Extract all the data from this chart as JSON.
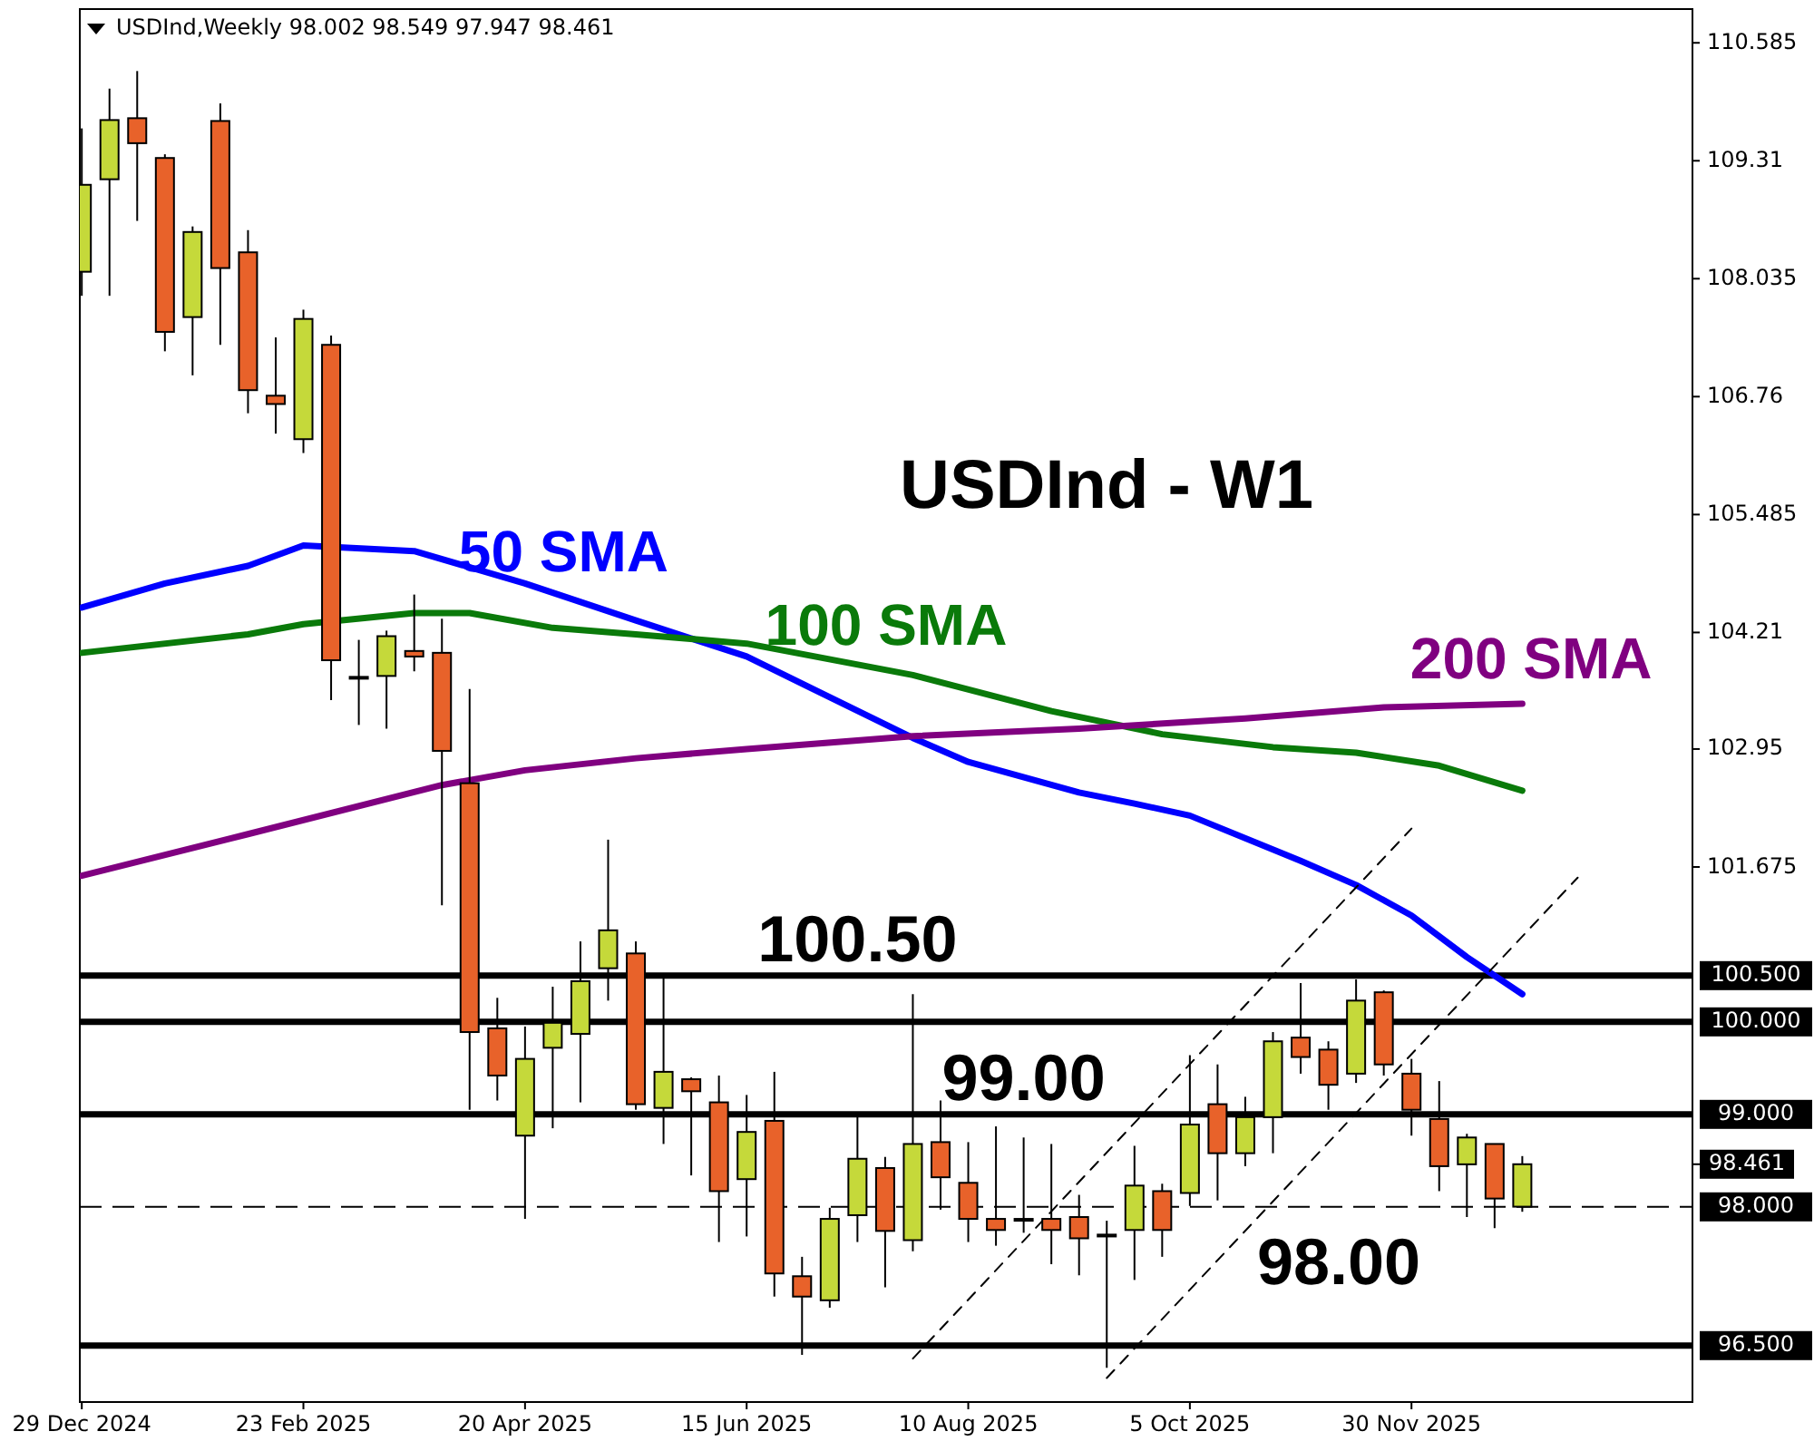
{
  "chart_data": {
    "type": "candlestick",
    "title": "USDInd - W1",
    "subtitle": "USDInd,Weekly 98.002 98.549 97.947 98.461",
    "x": [
      "2024-12-29",
      "2025-01-05",
      "2025-01-12",
      "2025-01-19",
      "2025-01-26",
      "2025-02-02",
      "2025-02-09",
      "2025-02-16",
      "2025-02-23",
      "2025-03-02",
      "2025-03-09",
      "2025-03-16",
      "2025-03-23",
      "2025-03-30",
      "2025-04-06",
      "2025-04-13",
      "2025-04-20",
      "2025-04-27",
      "2025-05-04",
      "2025-05-11",
      "2025-05-18",
      "2025-05-25",
      "2025-06-01",
      "2025-06-08",
      "2025-06-15",
      "2025-06-22",
      "2025-06-29",
      "2025-07-06",
      "2025-07-13",
      "2025-07-20",
      "2025-07-27",
      "2025-08-03",
      "2025-08-10",
      "2025-08-17",
      "2025-08-24",
      "2025-08-31",
      "2025-09-07",
      "2025-09-14",
      "2025-09-21",
      "2025-09-28",
      "2025-10-05",
      "2025-10-12",
      "2025-10-19",
      "2025-10-26",
      "2025-11-02",
      "2025-11-09",
      "2025-11-16",
      "2025-11-23",
      "2025-11-30",
      "2025-12-07",
      "2025-12-14",
      "2025-12-21",
      "2025-12-28"
    ],
    "ohlc": [
      [
        108.11,
        109.66,
        107.85,
        109.05
      ],
      [
        109.11,
        110.09,
        107.85,
        109.75
      ],
      [
        109.77,
        110.28,
        108.66,
        109.5
      ],
      [
        109.34,
        109.38,
        107.25,
        107.46
      ],
      [
        107.62,
        108.6,
        106.99,
        108.54
      ],
      [
        109.74,
        109.93,
        107.32,
        108.15
      ],
      [
        108.32,
        108.56,
        106.58,
        106.83
      ],
      [
        106.77,
        107.4,
        106.36,
        106.68
      ],
      [
        106.3,
        107.7,
        106.15,
        107.6
      ],
      [
        107.32,
        107.42,
        103.48,
        103.91
      ],
      [
        103.73,
        104.13,
        103.21,
        103.72
      ],
      [
        103.74,
        104.23,
        103.17,
        104.17
      ],
      [
        104.01,
        104.62,
        103.79,
        103.95
      ],
      [
        103.99,
        104.36,
        101.26,
        102.93
      ],
      [
        102.58,
        103.6,
        99.05,
        99.89
      ],
      [
        99.93,
        100.26,
        99.15,
        99.42
      ],
      [
        98.77,
        99.95,
        97.87,
        99.6
      ],
      [
        99.72,
        100.38,
        98.85,
        99.99
      ],
      [
        99.87,
        100.87,
        99.13,
        100.44
      ],
      [
        100.58,
        101.97,
        100.23,
        100.99
      ],
      [
        100.74,
        100.87,
        99.05,
        99.11
      ],
      [
        99.07,
        100.48,
        98.68,
        99.46
      ],
      [
        99.38,
        99.4,
        98.34,
        99.25
      ],
      [
        99.13,
        99.42,
        97.62,
        98.17
      ],
      [
        98.3,
        99.21,
        97.68,
        98.81
      ],
      [
        98.93,
        99.46,
        97.03,
        97.28
      ],
      [
        97.25,
        97.46,
        96.4,
        97.03
      ],
      [
        96.99,
        97.99,
        96.91,
        97.87
      ],
      [
        97.91,
        98.97,
        97.62,
        98.52
      ],
      [
        98.42,
        98.54,
        97.13,
        97.74
      ],
      [
        97.64,
        100.3,
        97.52,
        98.68
      ],
      [
        98.7,
        99.15,
        97.97,
        98.32
      ],
      [
        98.26,
        98.7,
        97.62,
        97.87
      ],
      [
        97.87,
        98.87,
        97.58,
        97.75
      ],
      [
        97.85,
        98.75,
        97.72,
        97.87
      ],
      [
        97.87,
        98.68,
        97.38,
        97.75
      ],
      [
        97.89,
        98.13,
        97.26,
        97.66
      ],
      [
        97.68,
        97.85,
        96.26,
        97.7
      ],
      [
        97.75,
        98.66,
        97.21,
        98.23
      ],
      [
        98.17,
        98.25,
        97.46,
        97.75
      ],
      [
        98.15,
        99.64,
        98.01,
        98.89
      ],
      [
        99.11,
        99.54,
        98.07,
        98.58
      ],
      [
        98.58,
        99.19,
        98.44,
        98.97
      ],
      [
        98.97,
        99.89,
        98.58,
        99.79
      ],
      [
        99.83,
        100.42,
        99.44,
        99.62
      ],
      [
        99.7,
        99.79,
        99.05,
        99.32
      ],
      [
        99.44,
        100.46,
        99.34,
        100.23
      ],
      [
        100.32,
        100.34,
        99.42,
        99.54
      ],
      [
        99.44,
        99.6,
        98.77,
        99.05
      ],
      [
        98.95,
        99.36,
        98.17,
        98.44
      ],
      [
        98.46,
        98.79,
        97.89,
        98.75
      ],
      [
        98.68,
        98.68,
        97.77,
        98.09
      ],
      [
        98.002,
        98.549,
        97.947,
        98.461
      ]
    ],
    "colors": [
      "#c5d93a",
      "#c5d93a",
      "#e8622a",
      "#e8622a",
      "#c5d93a",
      "#e8622a",
      "#e8622a",
      "#e8622a",
      "#c5d93a",
      "#e8622a",
      "#e8622a",
      "#c5d93a",
      "#e8622a",
      "#e8622a",
      "#e8622a",
      "#e8622a",
      "#c5d93a",
      "#c5d93a",
      "#c5d93a",
      "#c5d93a",
      "#e8622a",
      "#c5d93a",
      "#e8622a",
      "#e8622a",
      "#c5d93a",
      "#e8622a",
      "#e8622a",
      "#c5d93a",
      "#c5d93a",
      "#e8622a",
      "#c5d93a",
      "#e8622a",
      "#e8622a",
      "#e8622a",
      "#c5d93a",
      "#e8622a",
      "#e8622a",
      "#c5d93a",
      "#c5d93a",
      "#e8622a",
      "#c5d93a",
      "#e8622a",
      "#c5d93a",
      "#c5d93a",
      "#e8622a",
      "#e8622a",
      "#c5d93a",
      "#e8622a",
      "#e8622a",
      "#e8622a",
      "#c5d93a",
      "#e8622a",
      "#c5d93a"
    ],
    "series": [
      {
        "type": "line",
        "name": "50 SMA",
        "color": "#0000ff",
        "x": [
          "2024-12-29",
          "2025-01-19",
          "2025-02-09",
          "2025-02-23",
          "2025-03-23",
          "2025-04-20",
          "2025-05-18",
          "2025-06-15",
          "2025-07-27",
          "2025-08-10",
          "2025-09-07",
          "2025-09-21",
          "2025-10-05",
          "2025-11-02",
          "2025-11-16",
          "2025-11-30",
          "2025-12-14",
          "2025-12-28"
        ],
        "values": [
          104.48,
          104.74,
          104.93,
          105.15,
          105.09,
          104.74,
          104.34,
          103.95,
          103.07,
          102.81,
          102.48,
          102.36,
          102.23,
          101.74,
          101.48,
          101.15,
          100.7,
          100.3
        ]
      },
      {
        "type": "line",
        "name": "100 SMA",
        "color": "#0a7a0a",
        "x": [
          "2024-12-29",
          "2025-02-09",
          "2025-02-23",
          "2025-03-23",
          "2025-04-06",
          "2025-04-27",
          "2025-05-18",
          "2025-06-15",
          "2025-07-27",
          "2025-08-31",
          "2025-09-28",
          "2025-10-26",
          "2025-11-16",
          "2025-12-07",
          "2025-12-28"
        ],
        "values": [
          103.99,
          104.19,
          104.3,
          104.42,
          104.42,
          104.26,
          104.19,
          104.09,
          103.75,
          103.36,
          103.11,
          102.97,
          102.91,
          102.77,
          102.5
        ]
      },
      {
        "type": "line",
        "name": "200 SMA",
        "color": "#800080",
        "x": [
          "2024-12-29",
          "2025-02-09",
          "2025-03-30",
          "2025-04-20",
          "2025-05-18",
          "2025-06-15",
          "2025-07-27",
          "2025-09-07",
          "2025-10-19",
          "2025-11-23",
          "2025-12-28"
        ],
        "values": [
          101.58,
          102.03,
          102.56,
          102.72,
          102.85,
          102.95,
          103.09,
          103.17,
          103.28,
          103.4,
          103.44
        ]
      },
      {
        "type": "line",
        "color": "#000000",
        "line_style": "dashed",
        "x": [
          "2025-07-27",
          "2025-11-30"
        ],
        "values": [
          96.36,
          102.09
        ]
      },
      {
        "type": "line",
        "color": "#000000",
        "line_style": "dashed",
        "x": [
          "2025-09-14",
          "2026-01-11"
        ],
        "values": [
          96.15,
          101.56
        ]
      }
    ],
    "ref_lines": [
      {
        "axis": "y",
        "value": 100.5,
        "label": "100.500"
      },
      {
        "axis": "y",
        "value": 100.0,
        "label": "100.000"
      },
      {
        "axis": "y",
        "value": 99.0,
        "label": "99.000"
      },
      {
        "axis": "y",
        "value": 98.0,
        "label": "98.000",
        "line_style": "dashed"
      },
      {
        "axis": "y",
        "value": 96.5,
        "label": "96.500"
      }
    ],
    "annotations": [
      {
        "text": "100.50",
        "x": "2025-07-13",
        "y": 100.5
      },
      {
        "text": "99.00",
        "x": "2025-08-24",
        "y": 99.0
      },
      "98.00",
      "98.461"
    ],
    "xlim": [
      "2024-12-28T12:00",
      "2026-02-09"
    ],
    "xticks": [
      {
        "value": "2024-12-29",
        "label": "29 Dec 2024"
      },
      {
        "value": "2025-02-23",
        "label": "23 Feb 2025"
      },
      {
        "value": "2025-04-20",
        "label": "20 Apr 2025"
      },
      {
        "value": "2025-06-15",
        "label": "15 Jun 2025"
      },
      {
        "value": "2025-08-10",
        "label": "10 Aug 2025"
      },
      {
        "value": "2025-10-05",
        "label": "5 Oct 2025"
      },
      {
        "value": "2025-11-30",
        "label": "30 Nov 2025"
      }
    ],
    "ylim": [
      95.89,
      110.95
    ],
    "yticks": [
      110.585,
      109.31,
      108.035,
      106.76,
      105.485,
      104.21,
      102.95,
      101.675
    ]
  }
}
